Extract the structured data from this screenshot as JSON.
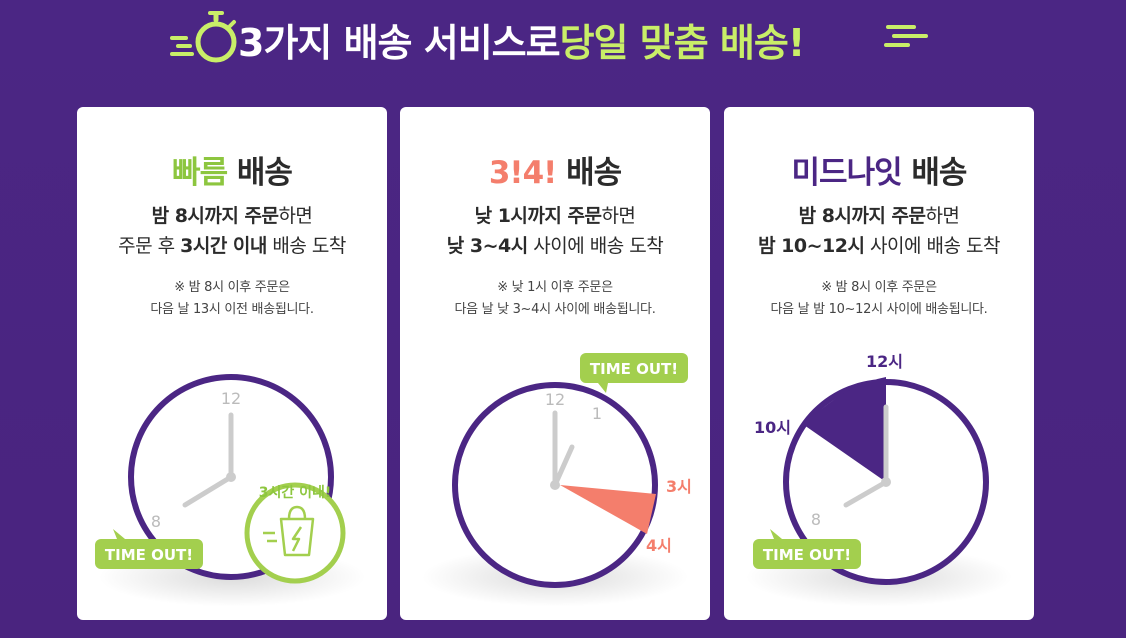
{
  "header": {
    "title_part1": "3가지 배송 서비스로 ",
    "title_highlight": "당일 맞춤 배송!",
    "accent_color": "#c9ee68",
    "background_color": "#4b2684"
  },
  "cards": [
    {
      "title_accent": "빠름",
      "title_rest": " 배송",
      "accent_color": "#8dc63f",
      "line1_bold": "밤 8시까지 주문",
      "line1_rest": "하면",
      "line2_pre": "주문 후 ",
      "line2_bold": "3시간 이내",
      "line2_rest": " 배송 도착",
      "note_line1": "※ 밤 8시 이후 주문은",
      "note_line2": "다음 날 13시 이전 배송됩니다.",
      "clock_12": "12",
      "clock_8": "8",
      "timeout_label": "TIME OUT!",
      "badge_label": "3시간 이내!"
    },
    {
      "title_accent": "3!4!",
      "title_rest": " 배송",
      "accent_color": "#f47e6c",
      "line1_bold": "낮 1시까지 주문",
      "line1_rest": "하면",
      "line2_pre": "",
      "line2_bold": "낮 3~4시",
      "line2_rest": " 사이에 배송 도착",
      "note_line1": "※ 낮 1시 이후 주문은",
      "note_line2": "다음 날 낮 3~4시 사이에 배송됩니다.",
      "clock_12": "12",
      "clock_1": "1",
      "label_3": "3시",
      "label_4": "4시",
      "timeout_label": "TIME OUT!"
    },
    {
      "title_accent": "미드나잇",
      "title_rest": " 배송",
      "accent_color": "#4b2684",
      "line1_bold": "밤 8시까지 주문",
      "line1_rest": "하면",
      "line2_pre": "",
      "line2_bold": "밤 10~12시",
      "line2_rest": " 사이에 배송 도착",
      "note_line1": "※ 밤 8시 이후 주문은",
      "note_line2": "다음 날 밤 10~12시 사이에 배송됩니다.",
      "clock_8": "8",
      "label_10": "10시",
      "label_12": "12시",
      "timeout_label": "TIME OUT!"
    }
  ]
}
